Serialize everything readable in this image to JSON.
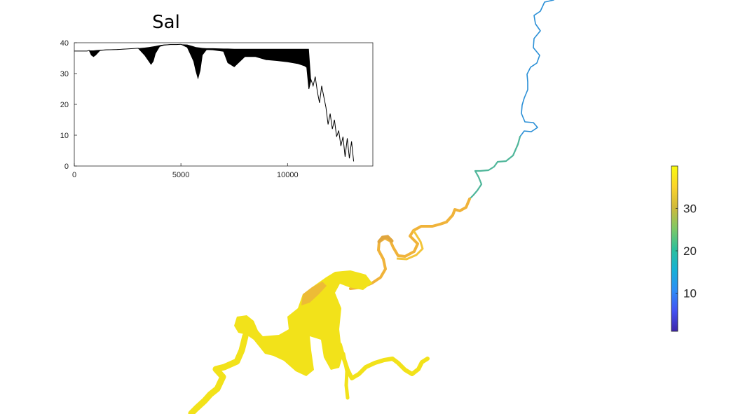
{
  "colors": {
    "plot_line": "#000000",
    "axes": "#262626",
    "map_high": "#f2e21a",
    "map_mid": "#f0a53a",
    "map_low": "#1f8fd8",
    "colormap": [
      "#3e26a8",
      "#4352f3",
      "#2d8ef6",
      "#16b2d4",
      "#2dc09a",
      "#80c864",
      "#d0b93a",
      "#fbd42b",
      "#f9fb0e"
    ]
  },
  "chart_data": [
    {
      "type": "line",
      "title": "Sal",
      "xlabel": "",
      "ylabel": "",
      "xlim": [
        0,
        14000
      ],
      "ylim": [
        0,
        40
      ],
      "xticks": [
        0,
        5000,
        10000
      ],
      "yticks": [
        0,
        10,
        20,
        30,
        40
      ],
      "grid": false,
      "series": [
        {
          "x": [
            0,
            600,
            700,
            800,
            900,
            1000,
            1200,
            1500,
            2000,
            3000,
            3300,
            3500,
            3600,
            3700,
            3800,
            4000,
            4200,
            4500,
            4800,
            5000,
            5300,
            5500,
            5600,
            5700,
            5800,
            5900,
            6000,
            6200,
            6500,
            7000,
            7200,
            7500,
            8000,
            8500,
            9000,
            9500,
            10000,
            10500,
            10800,
            10900,
            11000,
            11100,
            11200,
            11300,
            11400,
            11500,
            11600,
            11700,
            11800,
            11900,
            12000,
            12100,
            12200,
            12300,
            12400,
            12500,
            12600,
            12700,
            12800,
            12900,
            13000,
            13100
          ],
          "values": [
            37.3,
            37.3,
            37.5,
            36,
            35.5,
            36,
            37.5,
            37.7,
            37.8,
            38.2,
            36,
            34,
            33,
            34,
            36.5,
            38.8,
            39.2,
            39.4,
            39.4,
            39.5,
            38.5,
            35.5,
            34,
            31,
            28.5,
            31,
            36,
            37.8,
            37.7,
            37.2,
            33.5,
            32.2,
            35.5,
            35.5,
            34.5,
            34.2,
            33.8,
            33.2,
            32.5,
            32,
            25,
            28,
            26,
            29,
            24,
            20.5,
            26,
            22.5,
            19,
            13.5,
            17,
            12,
            15,
            9.5,
            11.5,
            6.5,
            9.5,
            3,
            9,
            2.5,
            8,
            1.5
          ],
          "band_upper": [
            37.3,
            37.3,
            37.5,
            37.5,
            37.5,
            37.6,
            37.7,
            37.8,
            37.9,
            38.2,
            38.4,
            38.6,
            38.7,
            38.8,
            38.9,
            39.2,
            39.4,
            39.5,
            39.5,
            39.5,
            39.4,
            39.0,
            38.8,
            38.6,
            38.5,
            38.4,
            38.3,
            38.2,
            38.2,
            38.1,
            38.1,
            38.0,
            38.0,
            38.0,
            38.0,
            38.0,
            38.0,
            38.0,
            38.0,
            38.0,
            38.0,
            28,
            26,
            29,
            24,
            20.5,
            26,
            22.5,
            19,
            13.5,
            17,
            12,
            15,
            9.5,
            11.5,
            6.5,
            9.5,
            3,
            9,
            2.5,
            8,
            1.5
          ]
        }
      ]
    },
    {
      "type": "heatmap",
      "title": "",
      "colorbar": {
        "range": [
          1,
          40
        ],
        "ticks": [
          10,
          20,
          30
        ]
      }
    }
  ]
}
